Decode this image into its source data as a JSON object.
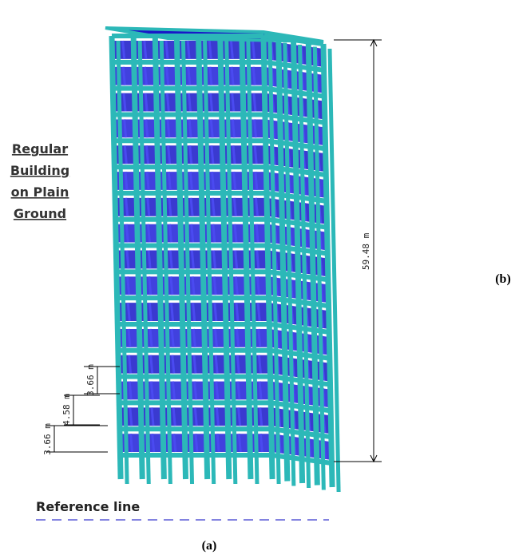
{
  "labels": {
    "description": [
      "Regular",
      "Building",
      "on Plain",
      "Ground"
    ],
    "height": "59.48 m",
    "panel_b": "(b)",
    "storey_heights": [
      "3.66 m",
      "4.58 m",
      "3.66 m"
    ],
    "reference": "Reference line",
    "panel_a": "(a)"
  }
}
